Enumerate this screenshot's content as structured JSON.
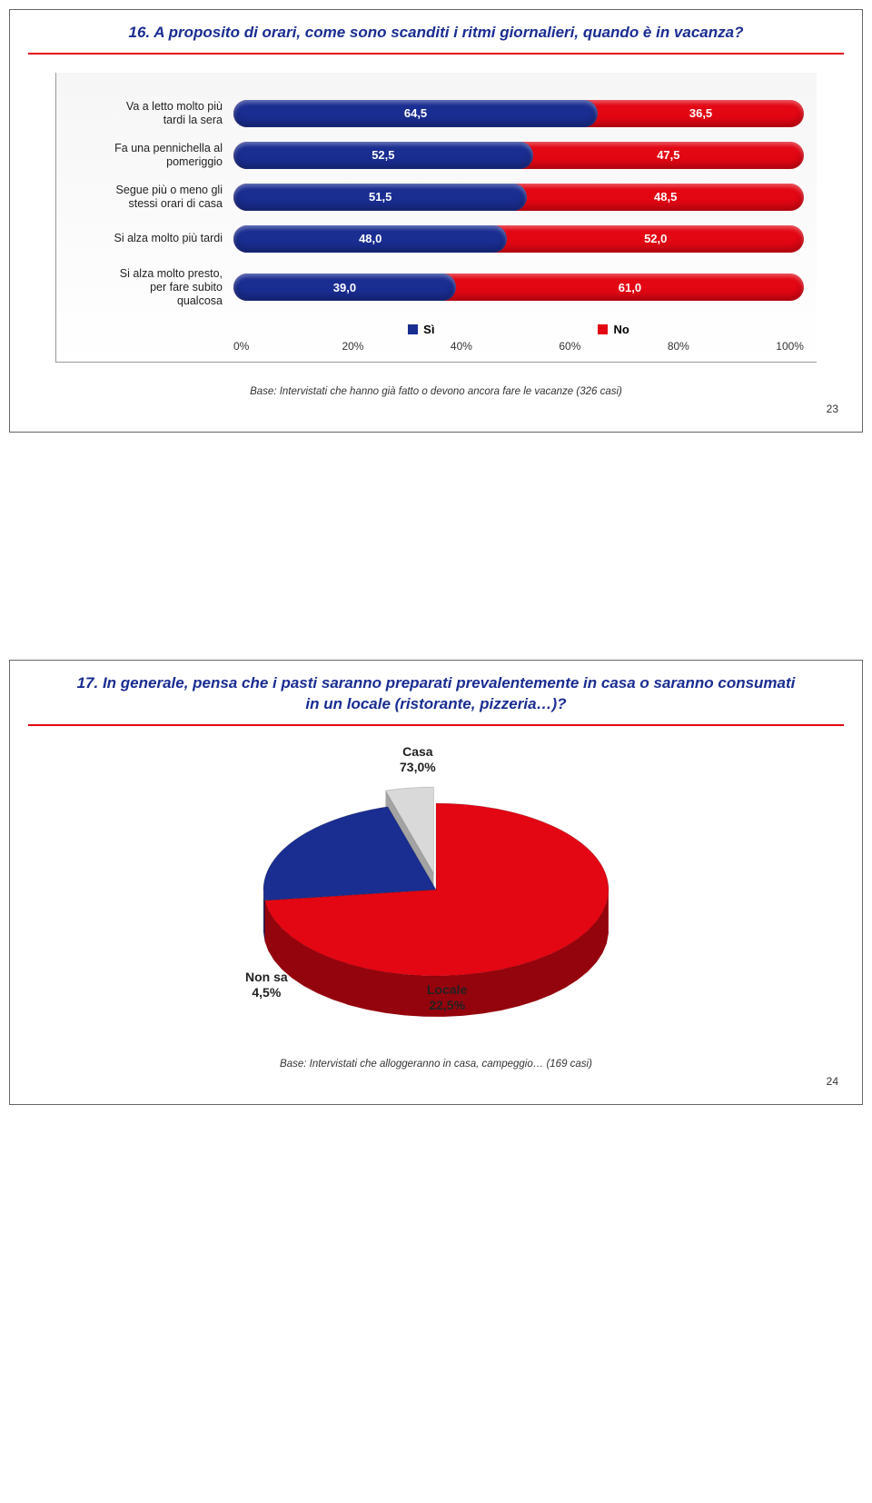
{
  "panel1": {
    "title": "16. A proposito di orari, come sono scanditi i ritmi giornalieri, quando è in vacanza?",
    "chart": {
      "type": "stacked-bar-horizontal",
      "colors": {
        "si": "#1a2d91",
        "no": "#e30613"
      },
      "legend": {
        "si": "Sì",
        "no": "No"
      },
      "axis_ticks": [
        "0%",
        "20%",
        "40%",
        "60%",
        "80%",
        "100%"
      ],
      "rows": [
        {
          "label": "Va a letto molto più\ntardi la sera",
          "si": 64.5,
          "no": 36.5,
          "si_txt": "64,5",
          "no_txt": "36,5"
        },
        {
          "label": "Fa una pennichella al\npomeriggio",
          "si": 52.5,
          "no": 47.5,
          "si_txt": "52,5",
          "no_txt": "47,5"
        },
        {
          "label": "Segue più o meno gli\nstessi orari di casa",
          "si": 51.5,
          "no": 48.5,
          "si_txt": "51,5",
          "no_txt": "48,5"
        },
        {
          "label": "Si alza molto più tardi",
          "si": 48.0,
          "no": 52.0,
          "si_txt": "48,0",
          "no_txt": "52,0"
        },
        {
          "label": "Si alza molto presto,\nper fare subito\nqualcosa",
          "si": 39.0,
          "no": 61.0,
          "si_txt": "39,0",
          "no_txt": "61,0"
        }
      ]
    },
    "footnote": "Base: Intervistati che hanno già fatto o devono ancora fare le vacanze (326 casi)",
    "page": "23"
  },
  "panel2": {
    "title": "17. In generale, pensa che i pasti saranno preparati prevalentemente in casa o saranno consumati in un locale (ristorante, pizzeria…)?",
    "pie": {
      "type": "pie-3d",
      "slices": [
        {
          "label": "Casa\n73,0%",
          "value": 73.0,
          "color": "#e30613"
        },
        {
          "label": "Locale\n22,5%",
          "value": 22.5,
          "color": "#1a2d91"
        },
        {
          "label": "Non sa\n4,5%",
          "value": 4.5,
          "color": "#d9d9d9"
        }
      ]
    },
    "footnote": "Base: Intervistati che alloggeranno in casa, campeggio… (169 casi)",
    "page": "24"
  }
}
